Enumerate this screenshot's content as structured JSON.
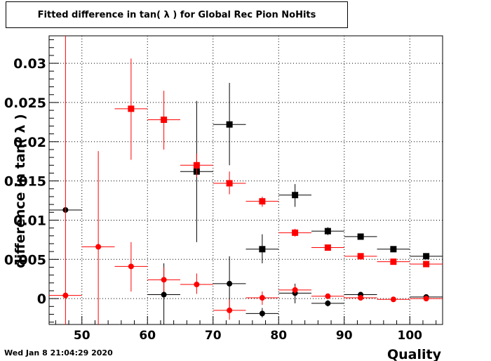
{
  "title": "Fitted difference in tan( λ ) for Global Rec Pion NoHits",
  "timestamp": "Wed Jan  8 21:04:29 2020",
  "chart_data": {
    "type": "scatter",
    "title": "Fitted difference in tan( λ ) for Global Rec Pion NoHits",
    "xlabel": "Quality",
    "ylabel": "difference in tan( λ )",
    "xlim": [
      45,
      105
    ],
    "ylim": [
      -0.0033,
      0.0335
    ],
    "grid": true,
    "x_ticks": [
      50,
      60,
      70,
      80,
      90,
      100
    ],
    "x_tick_labels": [
      "50",
      "60",
      "70",
      "80",
      "90",
      "100"
    ],
    "y_ticks": [
      0,
      0.005,
      0.01,
      0.015,
      0.02,
      0.025,
      0.03
    ],
    "y_tick_labels": [
      "0",
      "0.005",
      "0.01",
      "0.015",
      "0.02",
      "0.025",
      "0.03"
    ],
    "series": [
      {
        "color": "#000000",
        "marker": "square",
        "points": [
          {
            "x": 67.5,
            "y": 0.0162,
            "xerr": 2.5,
            "ylo": 0.0072,
            "yhi": 0.0252
          },
          {
            "x": 72.5,
            "y": 0.0222,
            "xerr": 2.5,
            "ylo": 0.017,
            "yhi": 0.0275
          },
          {
            "x": 77.5,
            "y": 0.0063,
            "xerr": 2.5,
            "ylo": 0.0045,
            "yhi": 0.0082
          },
          {
            "x": 82.5,
            "y": 0.0132,
            "xerr": 2.5,
            "ylo": 0.0117,
            "yhi": 0.0146
          },
          {
            "x": 87.5,
            "y": 0.0086,
            "xerr": 2.5,
            "ylo": 0.0081,
            "yhi": 0.0091
          },
          {
            "x": 92.5,
            "y": 0.0079,
            "xerr": 2.5,
            "ylo": 0.0076,
            "yhi": 0.0083
          },
          {
            "x": 97.5,
            "y": 0.0063,
            "xerr": 2.5,
            "ylo": 0.0061,
            "yhi": 0.0066
          },
          {
            "x": 102.5,
            "y": 0.0054,
            "xerr": 2.5,
            "ylo": 0.0052,
            "yhi": 0.0056
          }
        ]
      },
      {
        "color": "#000000",
        "marker": "circle",
        "points": [
          {
            "x": 47.5,
            "y": 0.0113,
            "xerr": 2.5,
            "ylo": 0.0113,
            "yhi": 0.0113
          },
          {
            "x": 62.5,
            "y": 0.0005,
            "xerr": 2.5,
            "ylo": -0.0033,
            "yhi": 0.0045
          },
          {
            "x": 72.5,
            "y": 0.0019,
            "xerr": 2.5,
            "ylo": -0.0014,
            "yhi": 0.0054
          },
          {
            "x": 77.5,
            "y": -0.0019,
            "xerr": 2.5,
            "ylo": -0.0024,
            "yhi": -0.0012
          },
          {
            "x": 82.5,
            "y": 0.0007,
            "xerr": 2.5,
            "ylo": -0.0006,
            "yhi": 0.0019
          },
          {
            "x": 87.5,
            "y": -0.0006,
            "xerr": 2.5,
            "ylo": -0.001,
            "yhi": -0.0002
          },
          {
            "x": 92.5,
            "y": 0.0005,
            "xerr": 2.5,
            "ylo": 0.0002,
            "yhi": 0.0008
          },
          {
            "x": 102.5,
            "y": 0.0002,
            "xerr": 2.5,
            "ylo": 0.0001,
            "yhi": 0.0004
          }
        ]
      },
      {
        "color": "#ff0000",
        "marker": "square",
        "points": [
          {
            "x": 57.5,
            "y": 0.0242,
            "xerr": 2.5,
            "ylo": 0.0177,
            "yhi": 0.0306
          },
          {
            "x": 62.5,
            "y": 0.0228,
            "xerr": 2.5,
            "ylo": 0.019,
            "yhi": 0.0265
          },
          {
            "x": 67.5,
            "y": 0.017,
            "xerr": 2.5,
            "ylo": 0.0155,
            "yhi": 0.0185
          },
          {
            "x": 72.5,
            "y": 0.0147,
            "xerr": 2.5,
            "ylo": 0.0133,
            "yhi": 0.0162
          },
          {
            "x": 77.5,
            "y": 0.0124,
            "xerr": 2.5,
            "ylo": 0.0117,
            "yhi": 0.013
          },
          {
            "x": 82.5,
            "y": 0.0084,
            "xerr": 2.5,
            "ylo": 0.0079,
            "yhi": 0.0089
          },
          {
            "x": 87.5,
            "y": 0.0065,
            "xerr": 2.5,
            "ylo": 0.0062,
            "yhi": 0.0068
          },
          {
            "x": 92.5,
            "y": 0.0054,
            "xerr": 2.5,
            "ylo": 0.0052,
            "yhi": 0.0056
          },
          {
            "x": 97.5,
            "y": 0.0047,
            "xerr": 2.5,
            "ylo": 0.0046,
            "yhi": 0.0048
          },
          {
            "x": 102.5,
            "y": 0.0044,
            "xerr": 2.5,
            "ylo": 0.0043,
            "yhi": 0.0045
          }
        ]
      },
      {
        "color": "#ff0000",
        "marker": "circle",
        "points": [
          {
            "x": 47.5,
            "y": 0.0004,
            "xerr": 2.5,
            "ylo": -0.0033,
            "yhi": 0.0335
          },
          {
            "x": 52.5,
            "y": 0.0066,
            "xerr": 2.5,
            "ylo": -0.0033,
            "yhi": 0.0188
          },
          {
            "x": 57.5,
            "y": 0.0041,
            "xerr": 2.5,
            "ylo": 0.0009,
            "yhi": 0.0072
          },
          {
            "x": 62.5,
            "y": 0.0024,
            "xerr": 2.5,
            "ylo": 0.0009,
            "yhi": 0.004
          },
          {
            "x": 67.5,
            "y": 0.0018,
            "xerr": 2.5,
            "ylo": 0.0006,
            "yhi": 0.0032
          },
          {
            "x": 72.5,
            "y": -0.0015,
            "xerr": 2.5,
            "ylo": -0.0027,
            "yhi": -0.0001
          },
          {
            "x": 77.5,
            "y": 0.0001,
            "xerr": 2.5,
            "ylo": -0.0008,
            "yhi": 0.0009
          },
          {
            "x": 82.5,
            "y": 0.0011,
            "xerr": 2.5,
            "ylo": 0.0006,
            "yhi": 0.0016
          },
          {
            "x": 87.5,
            "y": 0.0003,
            "xerr": 2.5,
            "ylo": 0.0001,
            "yhi": 0.0005
          },
          {
            "x": 92.5,
            "y": 0.0001,
            "xerr": 2.5,
            "ylo": 0.0,
            "yhi": 0.0002
          },
          {
            "x": 97.5,
            "y": -0.0001,
            "xerr": 2.5,
            "ylo": -0.0002,
            "yhi": 0.0
          },
          {
            "x": 102.5,
            "y": 0.0,
            "xerr": 2.5,
            "ylo": -0.0001,
            "yhi": 0.0001
          }
        ]
      }
    ]
  }
}
